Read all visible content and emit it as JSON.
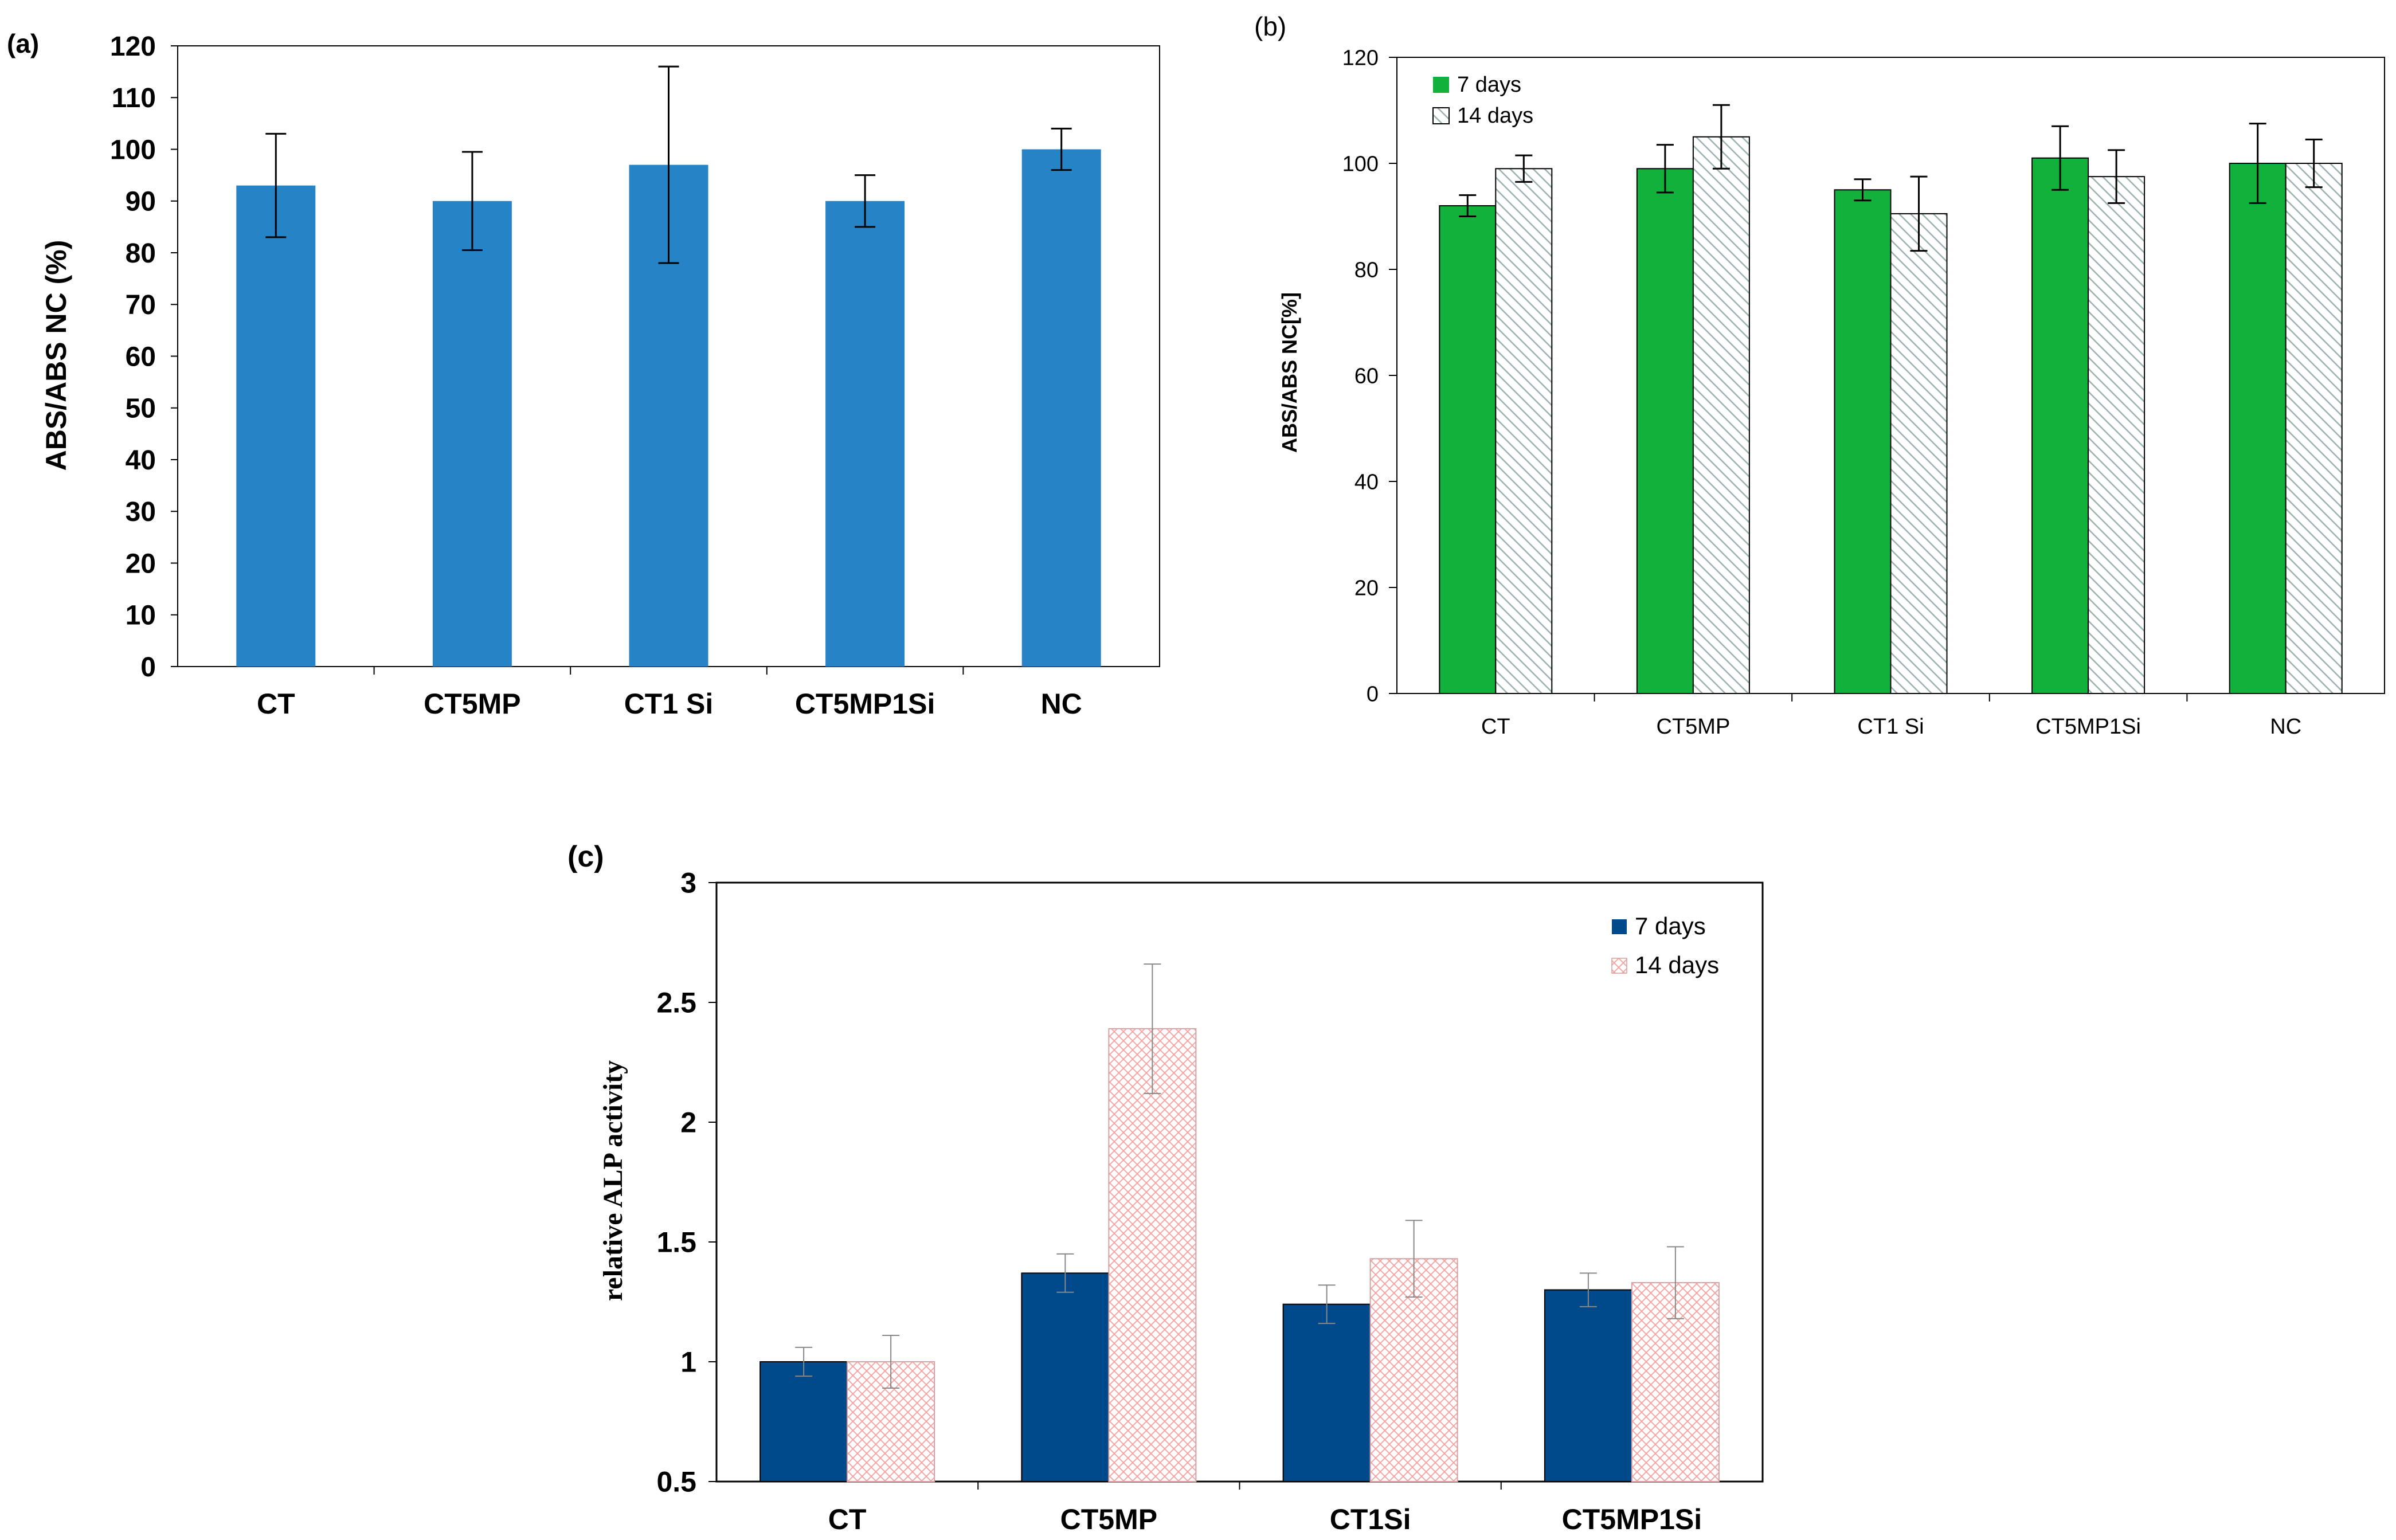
{
  "figure": {
    "panels": [
      "(a)",
      "(b)",
      "(c)"
    ]
  },
  "chart_data": [
    {
      "panel": "(a)",
      "type": "bar",
      "title": "",
      "xlabel": "",
      "ylabel": "ABS/ABS NC (%)",
      "ylim": [
        0,
        120
      ],
      "yticks": [
        0,
        10,
        20,
        30,
        40,
        50,
        60,
        70,
        80,
        90,
        100,
        110,
        120
      ],
      "categories": [
        "CT",
        "CT5MP",
        "CT1 Si",
        "CT5MP1Si",
        "NC"
      ],
      "series": [
        {
          "name": "",
          "color": "#2683c6",
          "values": [
            93,
            90,
            97,
            90,
            100
          ],
          "errors": [
            10,
            9.5,
            19,
            5,
            4
          ]
        }
      ],
      "legend": null
    },
    {
      "panel": "(b)",
      "type": "bar",
      "title": "",
      "xlabel": "",
      "ylabel": "ABS/ABS NC[%]",
      "ylim": [
        0,
        120
      ],
      "yticks": [
        0,
        20,
        40,
        60,
        80,
        100,
        120
      ],
      "categories": [
        "CT",
        "CT5MP",
        "CT1 Si",
        "CT5MP1Si",
        "NC"
      ],
      "series": [
        {
          "name": "7 days",
          "color": "#12b13b",
          "pattern": "solid",
          "values": [
            92,
            99,
            95,
            101,
            100
          ],
          "errors": [
            2,
            4.5,
            2,
            6,
            7.5
          ]
        },
        {
          "name": "14 days",
          "color": "#ffffff",
          "pattern": "diagonal-hatch",
          "values": [
            99,
            105,
            90.5,
            97.5,
            100
          ],
          "errors": [
            2.5,
            6,
            7,
            5,
            4.5
          ]
        }
      ],
      "legend": "top-left"
    },
    {
      "panel": "(c)",
      "type": "bar",
      "title": "",
      "xlabel": "",
      "ylabel": "relative ALP activity",
      "ylim": [
        0.5,
        3
      ],
      "yticks": [
        "0.5",
        "1",
        "1.5",
        "2",
        "2.5",
        "3"
      ],
      "categories": [
        "CT",
        "CT5MP",
        "CT1Si",
        "CT5MP1Si"
      ],
      "series": [
        {
          "name": "7 days",
          "color": "#004a8b",
          "pattern": "solid",
          "values": [
            1.0,
            1.37,
            1.24,
            1.3
          ],
          "errors": [
            0.06,
            0.08,
            0.08,
            0.07
          ]
        },
        {
          "name": "14 days",
          "color": "#f0b8b8",
          "pattern": "cross-hatch",
          "values": [
            1.0,
            2.39,
            1.43,
            1.33
          ],
          "errors": [
            0.11,
            0.27,
            0.16,
            0.15
          ]
        }
      ],
      "legend": "top-right"
    }
  ]
}
